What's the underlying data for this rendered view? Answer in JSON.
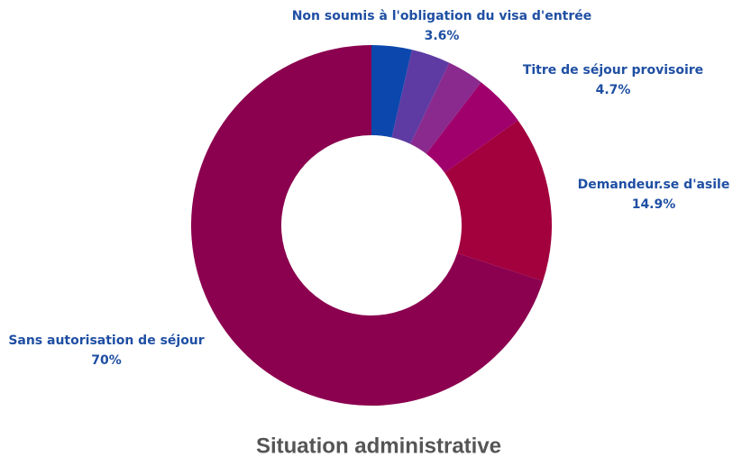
{
  "chart_data": {
    "type": "pie",
    "title": "Situation administrative",
    "categories": [
      "Non soumis à l'obligation du visa d'entrée",
      null,
      null,
      "Titre de séjour provisoire",
      "Demandeur.se d'asile",
      "Sans autorisation de séjour"
    ],
    "values": [
      3.6,
      3.5,
      3.3,
      4.7,
      14.9,
      70
    ],
    "value_labels": [
      "3.6%",
      null,
      null,
      "4.7%",
      "14.9%",
      "70%"
    ],
    "colors": [
      "#0b47ad",
      "#5e3ba3",
      "#8a2a8e",
      "#a0006c",
      "#a3003e",
      "#8b004f"
    ],
    "donut": true
  }
}
